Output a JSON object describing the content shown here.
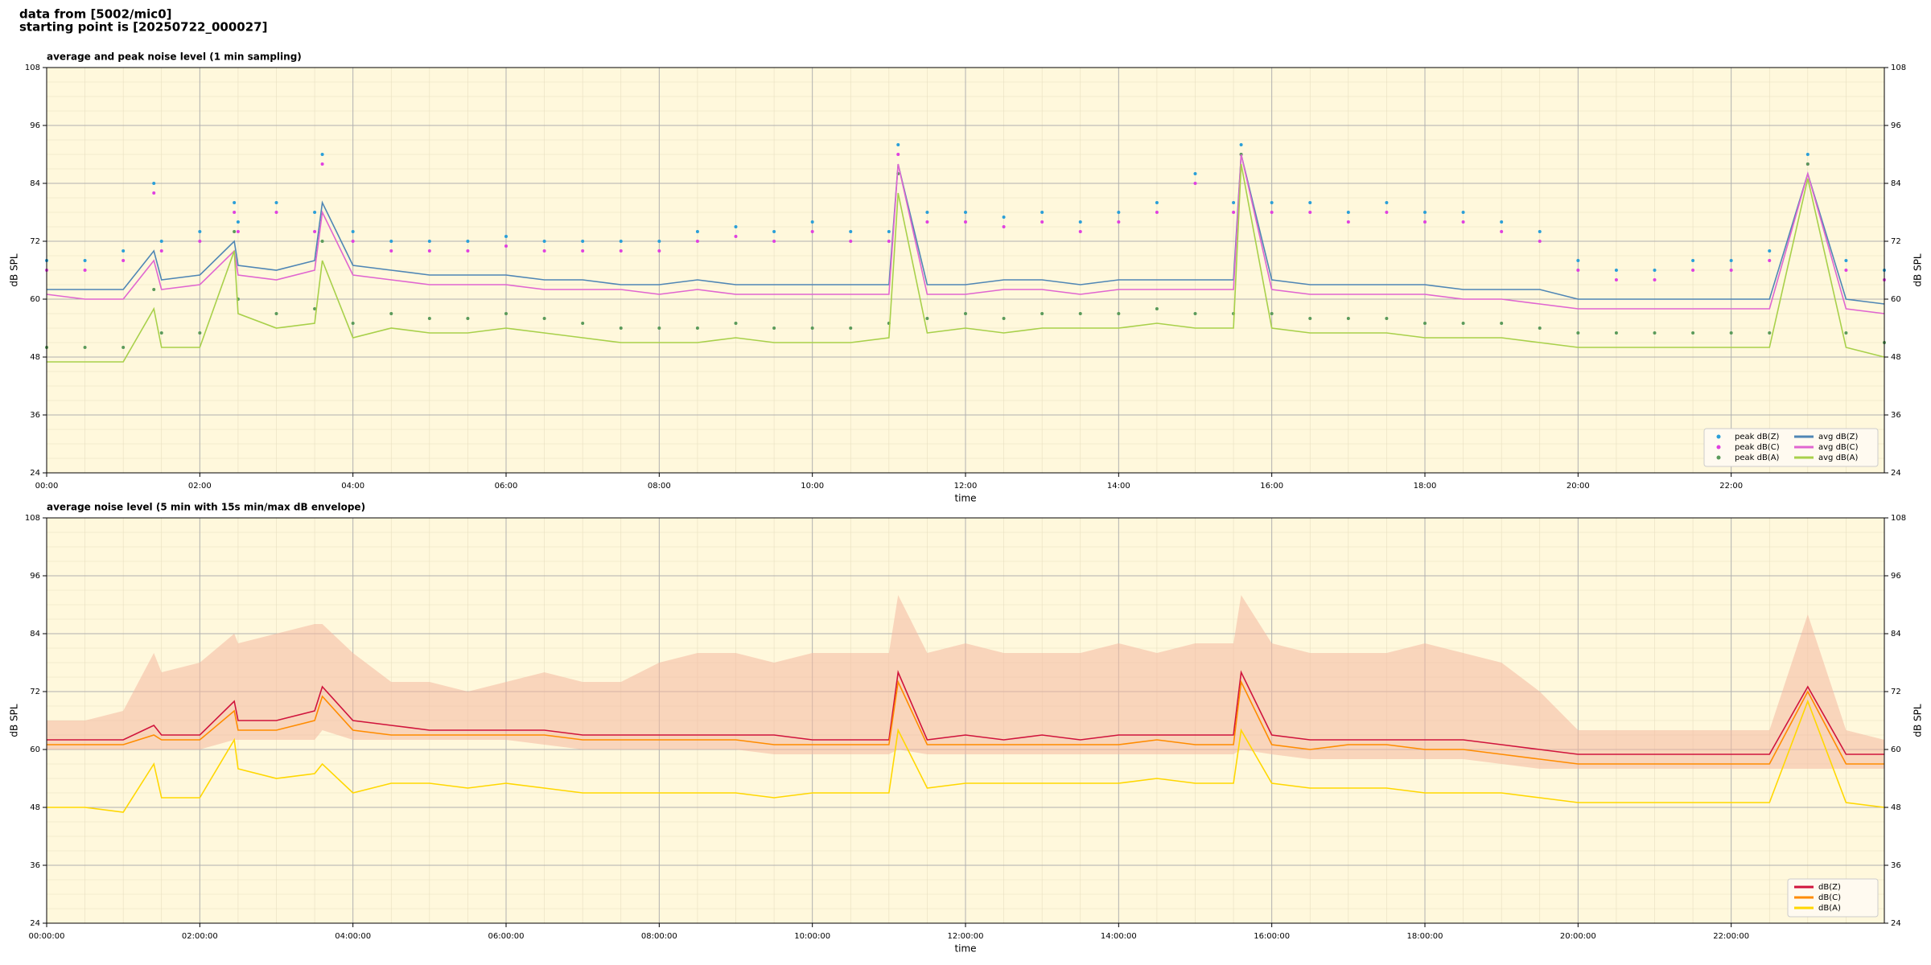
{
  "header": {
    "lines": [
      "data from [5002/mic0]",
      "starting point is [20250722_000027]"
    ]
  },
  "chart_data": [
    {
      "type": "line",
      "title": "average and peak noise level (1 min sampling)",
      "x_label": "time",
      "y_label": "dB SPL",
      "xlim": [
        0,
        24
      ],
      "ylim": [
        24,
        108
      ],
      "yticks": [
        24,
        36,
        48,
        60,
        72,
        84,
        96,
        108
      ],
      "xticks": [
        {
          "value": 0,
          "label": "00:00"
        },
        {
          "value": 2,
          "label": "02:00"
        },
        {
          "value": 4,
          "label": "04:00"
        },
        {
          "value": 6,
          "label": "06:00"
        },
        {
          "value": 8,
          "label": "08:00"
        },
        {
          "value": 10,
          "label": "10:00"
        },
        {
          "value": 12,
          "label": "12:00"
        },
        {
          "value": 14,
          "label": "14:00"
        },
        {
          "value": 16,
          "label": "16:00"
        },
        {
          "value": 18,
          "label": "18:00"
        },
        {
          "value": 20,
          "label": "20:00"
        },
        {
          "value": 22,
          "label": "22:00"
        }
      ],
      "grid": true,
      "legend": "lower right",
      "background": "#fff8dc",
      "x": [
        0,
        0.5,
        1,
        1.4,
        1.5,
        2,
        2.45,
        2.5,
        3,
        3.5,
        3.6,
        4,
        4.5,
        5,
        5.5,
        6,
        6.5,
        7,
        7.5,
        8,
        8.5,
        9,
        9.5,
        10,
        10.5,
        11,
        11.12,
        11.5,
        12,
        12.5,
        13,
        13.5,
        14,
        14.5,
        15,
        15.5,
        15.6,
        16,
        16.5,
        17,
        17.5,
        18,
        18.5,
        19,
        19.5,
        20,
        20.5,
        21,
        21.5,
        22,
        22.5,
        23,
        23.5,
        24
      ],
      "series": [
        {
          "name": "peak dB(Z)",
          "mode": "markers",
          "color": "#2a9fd8",
          "values": [
            68,
            68,
            70,
            84,
            72,
            74,
            80,
            76,
            80,
            78,
            90,
            74,
            72,
            72,
            72,
            73,
            72,
            72,
            72,
            72,
            74,
            75,
            74,
            76,
            74,
            74,
            92,
            78,
            78,
            77,
            78,
            76,
            78,
            80,
            86,
            80,
            92,
            80,
            80,
            78,
            80,
            78,
            78,
            76,
            74,
            68,
            66,
            66,
            68,
            68,
            70,
            90,
            68,
            66
          ]
        },
        {
          "name": "peak dB(C)",
          "mode": "markers",
          "color": "#e040e0",
          "values": [
            66,
            66,
            68,
            82,
            70,
            72,
            78,
            74,
            78,
            74,
            88,
            72,
            70,
            70,
            70,
            71,
            70,
            70,
            70,
            70,
            72,
            73,
            72,
            74,
            72,
            72,
            90,
            76,
            76,
            75,
            76,
            74,
            76,
            78,
            84,
            78,
            90,
            78,
            78,
            76,
            78,
            76,
            76,
            74,
            72,
            66,
            64,
            64,
            66,
            66,
            68,
            88,
            66,
            64
          ]
        },
        {
          "name": "peak dB(A)",
          "mode": "markers",
          "color": "#5a9a5a",
          "values": [
            50,
            50,
            50,
            62,
            53,
            53,
            74,
            60,
            57,
            58,
            72,
            55,
            57,
            56,
            56,
            57,
            56,
            55,
            54,
            54,
            54,
            55,
            54,
            54,
            54,
            55,
            86,
            56,
            57,
            56,
            57,
            57,
            57,
            58,
            57,
            57,
            90,
            57,
            56,
            56,
            56,
            55,
            55,
            55,
            54,
            53,
            53,
            53,
            53,
            53,
            53,
            88,
            53,
            51
          ]
        },
        {
          "name": "avg dB(Z)",
          "mode": "lines",
          "color": "#4f86b5",
          "values": [
            62,
            62,
            62,
            70,
            64,
            65,
            72,
            67,
            66,
            68,
            80,
            67,
            66,
            65,
            65,
            65,
            64,
            64,
            63,
            63,
            64,
            63,
            63,
            63,
            63,
            63,
            88,
            63,
            63,
            64,
            64,
            63,
            64,
            64,
            64,
            64,
            90,
            64,
            63,
            63,
            63,
            63,
            62,
            62,
            62,
            60,
            60,
            60,
            60,
            60,
            60,
            86,
            60,
            59
          ]
        },
        {
          "name": "avg dB(C)",
          "mode": "lines",
          "color": "#e066d0",
          "values": [
            61,
            60,
            60,
            68,
            62,
            63,
            70,
            65,
            64,
            66,
            78,
            65,
            64,
            63,
            63,
            63,
            62,
            62,
            62,
            61,
            62,
            61,
            61,
            61,
            61,
            61,
            88,
            61,
            61,
            62,
            62,
            61,
            62,
            62,
            62,
            62,
            90,
            62,
            61,
            61,
            61,
            61,
            60,
            60,
            59,
            58,
            58,
            58,
            58,
            58,
            58,
            86,
            58,
            57
          ]
        },
        {
          "name": "avg dB(A)",
          "mode": "lines",
          "color": "#a8d04a",
          "values": [
            47,
            47,
            47,
            58,
            50,
            50,
            70,
            57,
            54,
            55,
            68,
            52,
            54,
            53,
            53,
            54,
            53,
            52,
            51,
            51,
            51,
            52,
            51,
            51,
            51,
            52,
            82,
            53,
            54,
            53,
            54,
            54,
            54,
            55,
            54,
            54,
            88,
            54,
            53,
            53,
            53,
            52,
            52,
            52,
            51,
            50,
            50,
            50,
            50,
            50,
            50,
            85,
            50,
            48
          ]
        }
      ]
    },
    {
      "type": "line",
      "title": "average noise level (5 min with 15s min/max dB envelope)",
      "x_label": "time",
      "y_label": "dB SPL",
      "xlim": [
        0,
        24
      ],
      "ylim": [
        24,
        108
      ],
      "yticks": [
        24,
        36,
        48,
        60,
        72,
        84,
        96,
        108
      ],
      "xticks": [
        {
          "value": 0,
          "label": "00:00:00"
        },
        {
          "value": 2,
          "label": "02:00:00"
        },
        {
          "value": 4,
          "label": "04:00:00"
        },
        {
          "value": 6,
          "label": "06:00:00"
        },
        {
          "value": 8,
          "label": "08:00:00"
        },
        {
          "value": 10,
          "label": "10:00:00"
        },
        {
          "value": 12,
          "label": "12:00:00"
        },
        {
          "value": 14,
          "label": "14:00:00"
        },
        {
          "value": 16,
          "label": "16:00:00"
        },
        {
          "value": 18,
          "label": "18:00:00"
        },
        {
          "value": 20,
          "label": "20:00:00"
        },
        {
          "value": 22,
          "label": "22:00:00"
        }
      ],
      "grid": true,
      "legend": "lower right",
      "background": "#fff8dc",
      "x": [
        0,
        0.5,
        1,
        1.4,
        1.5,
        2,
        2.45,
        2.5,
        3,
        3.5,
        3.6,
        4,
        4.5,
        5,
        5.5,
        6,
        6.5,
        7,
        7.5,
        8,
        8.5,
        9,
        9.5,
        10,
        10.5,
        11,
        11.12,
        11.5,
        12,
        12.5,
        13,
        13.5,
        14,
        14.5,
        15,
        15.5,
        15.6,
        16,
        16.5,
        17,
        17.5,
        18,
        18.5,
        19,
        19.5,
        20,
        20.5,
        21,
        21.5,
        22,
        22.5,
        23,
        23.5,
        24
      ],
      "envelope": {
        "color": "#f4b8a0",
        "lower": [
          60,
          60,
          60,
          60,
          60,
          60,
          62,
          62,
          62,
          62,
          64,
          62,
          62,
          62,
          62,
          62,
          61,
          60,
          60,
          60,
          60,
          60,
          59,
          59,
          59,
          59,
          60,
          59,
          59,
          59,
          59,
          59,
          59,
          59,
          59,
          59,
          60,
          59,
          58,
          58,
          58,
          58,
          58,
          57,
          56,
          56,
          56,
          56,
          56,
          56,
          56,
          56,
          56,
          56
        ],
        "upper": [
          66,
          66,
          68,
          80,
          76,
          78,
          84,
          82,
          84,
          86,
          86,
          80,
          74,
          74,
          72,
          74,
          76,
          74,
          74,
          78,
          80,
          80,
          78,
          80,
          80,
          80,
          92,
          80,
          82,
          80,
          80,
          80,
          82,
          80,
          82,
          82,
          92,
          82,
          80,
          80,
          80,
          82,
          80,
          78,
          72,
          64,
          64,
          64,
          64,
          64,
          64,
          88,
          64,
          62
        ]
      },
      "series": [
        {
          "name": "dB(Z)",
          "mode": "lines",
          "color": "#d0143c",
          "values": [
            62,
            62,
            62,
            65,
            63,
            63,
            70,
            66,
            66,
            68,
            73,
            66,
            65,
            64,
            64,
            64,
            64,
            63,
            63,
            63,
            63,
            63,
            63,
            62,
            62,
            62,
            76,
            62,
            63,
            62,
            63,
            62,
            63,
            63,
            63,
            63,
            76,
            63,
            62,
            62,
            62,
            62,
            62,
            61,
            60,
            59,
            59,
            59,
            59,
            59,
            59,
            73,
            59,
            59
          ]
        },
        {
          "name": "dB(C)",
          "mode": "lines",
          "color": "#ff8c00",
          "values": [
            61,
            61,
            61,
            63,
            62,
            62,
            68,
            64,
            64,
            66,
            71,
            64,
            63,
            63,
            63,
            63,
            63,
            62,
            62,
            62,
            62,
            62,
            61,
            61,
            61,
            61,
            74,
            61,
            61,
            61,
            61,
            61,
            61,
            62,
            61,
            61,
            74,
            61,
            60,
            61,
            61,
            60,
            60,
            59,
            58,
            57,
            57,
            57,
            57,
            57,
            57,
            72,
            57,
            57
          ]
        },
        {
          "name": "dB(A)",
          "mode": "lines",
          "color": "#ffd700",
          "values": [
            48,
            48,
            47,
            57,
            50,
            50,
            62,
            56,
            54,
            55,
            57,
            51,
            53,
            53,
            52,
            53,
            52,
            51,
            51,
            51,
            51,
            51,
            50,
            51,
            51,
            51,
            64,
            52,
            53,
            53,
            53,
            53,
            53,
            54,
            53,
            53,
            64,
            53,
            52,
            52,
            52,
            51,
            51,
            51,
            50,
            49,
            49,
            49,
            49,
            49,
            49,
            70,
            49,
            48
          ]
        }
      ]
    }
  ]
}
